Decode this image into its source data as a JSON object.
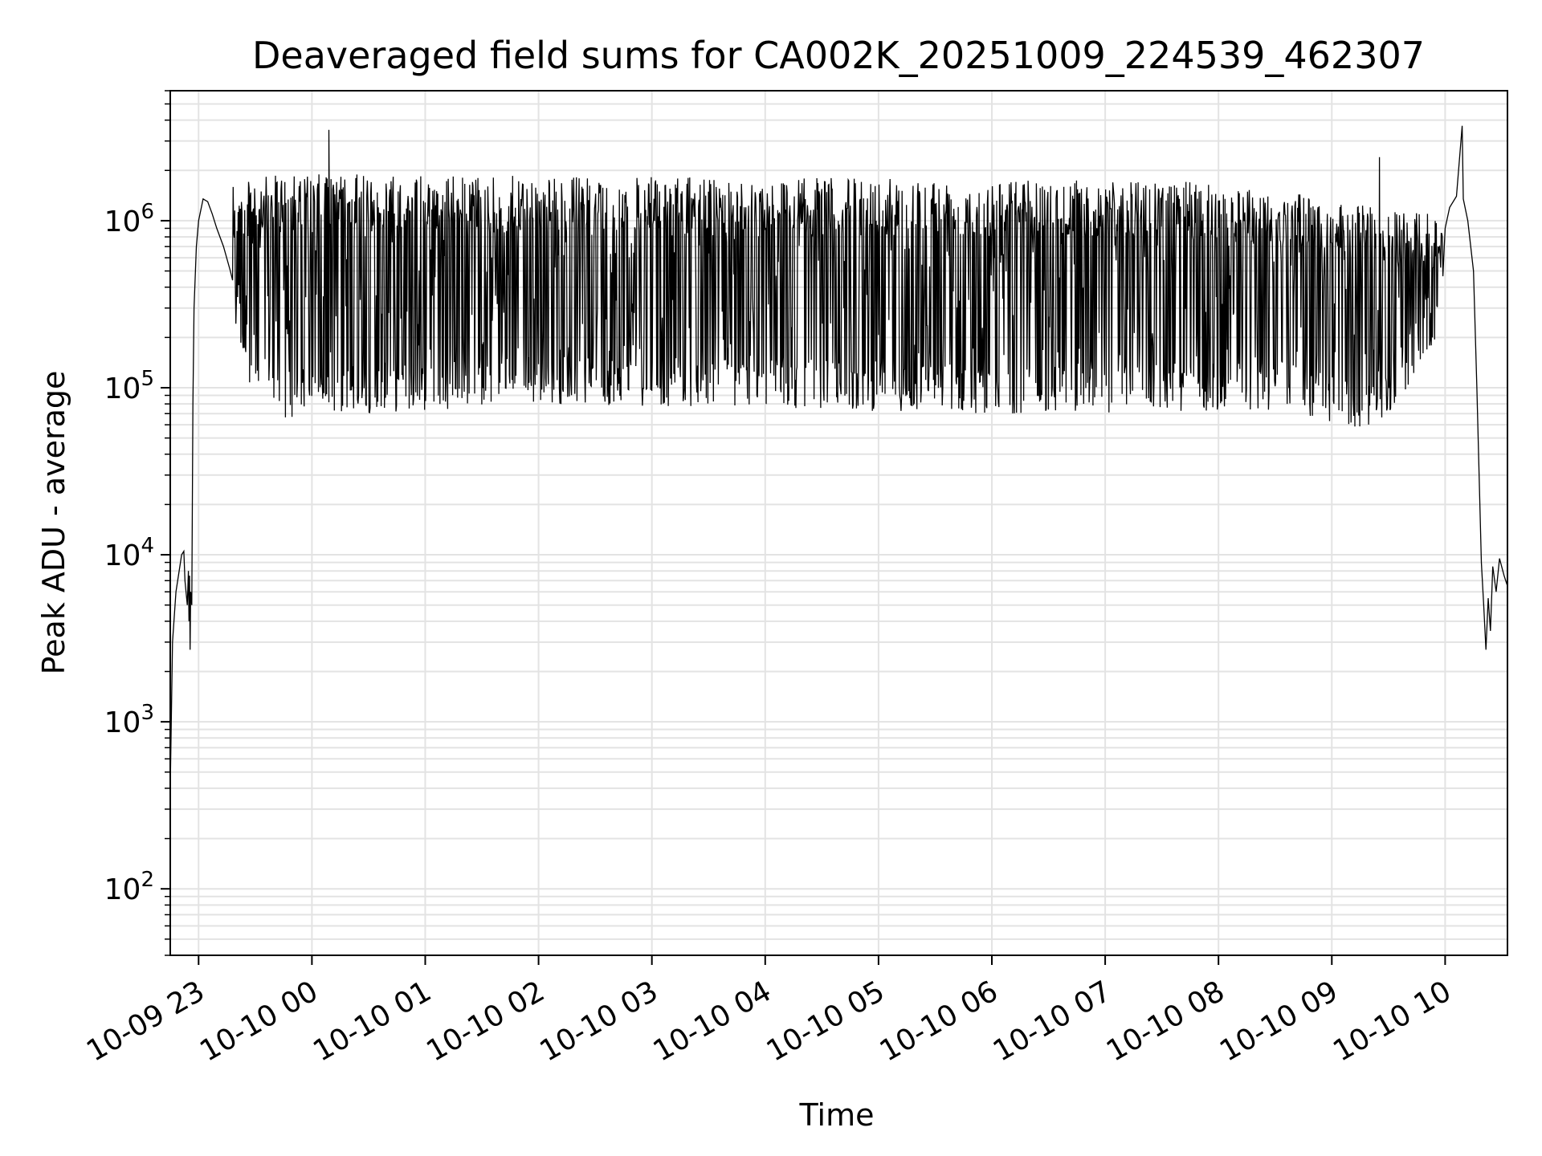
{
  "chart_data": {
    "type": "line",
    "title": "Deaveraged field sums for CA002K_20251009_224539_462307",
    "xlabel": "Time",
    "ylabel": "Peak ADU - average",
    "yscale": "log",
    "ylim": [
      40,
      6000000
    ],
    "xlim_hours": [
      -0.25,
      11.55
    ],
    "x_time_origin": "10-09 23",
    "grid": true,
    "x_ticks": [
      {
        "hour": 0,
        "label": "10-09 23"
      },
      {
        "hour": 1,
        "label": "10-10 00"
      },
      {
        "hour": 2,
        "label": "10-10 01"
      },
      {
        "hour": 3,
        "label": "10-10 02"
      },
      {
        "hour": 4,
        "label": "10-10 03"
      },
      {
        "hour": 5,
        "label": "10-10 04"
      },
      {
        "hour": 6,
        "label": "10-10 05"
      },
      {
        "hour": 7,
        "label": "10-10 06"
      },
      {
        "hour": 8,
        "label": "10-10 07"
      },
      {
        "hour": 9,
        "label": "10-10 08"
      },
      {
        "hour": 10,
        "label": "10-10 09"
      },
      {
        "hour": 11,
        "label": "10-10 10"
      }
    ],
    "y_ticks": [
      {
        "value": 100,
        "base": "10",
        "exp": "2"
      },
      {
        "value": 1000,
        "base": "10",
        "exp": "3"
      },
      {
        "value": 10000,
        "base": "10",
        "exp": "4"
      },
      {
        "value": 100000,
        "base": "10",
        "exp": "5"
      },
      {
        "value": 1000000,
        "base": "10",
        "exp": "6"
      }
    ],
    "series": [
      {
        "name": "peak_adu_minus_average",
        "color": "#000000",
        "envelope": [
          {
            "hour": 0.3,
            "low": 250000,
            "high": 1600000
          },
          {
            "hour": 0.5,
            "low": 80000,
            "high": 1800000
          },
          {
            "hour": 0.75,
            "low": 65000,
            "high": 1900000
          },
          {
            "hour": 1.5,
            "low": 70000,
            "high": 1900000
          },
          {
            "hour": 3.0,
            "low": 80000,
            "high": 1850000
          },
          {
            "hour": 5.0,
            "low": 75000,
            "high": 1800000
          },
          {
            "hour": 7.0,
            "low": 70000,
            "high": 1800000
          },
          {
            "hour": 9.0,
            "low": 70000,
            "high": 1700000
          },
          {
            "hour": 9.6,
            "low": 75000,
            "high": 1500000
          },
          {
            "hour": 10.0,
            "low": 60000,
            "high": 1300000
          },
          {
            "hour": 10.4,
            "low": 55000,
            "high": 1200000
          },
          {
            "hour": 10.85,
            "low": 150000,
            "high": 1100000
          },
          {
            "hour": 10.98,
            "low": 250000,
            "high": 1000000
          }
        ],
        "head": [
          {
            "hour": -0.25,
            "value": 400
          },
          {
            "hour": -0.23,
            "value": 3000
          },
          {
            "hour": -0.2,
            "value": 6000
          },
          {
            "hour": -0.16,
            "value": 9000
          },
          {
            "hour": -0.15,
            "value": 10000
          },
          {
            "hour": -0.13,
            "value": 10500
          },
          {
            "hour": -0.12,
            "value": 7000
          },
          {
            "hour": -0.1,
            "value": 5000
          },
          {
            "hour": -0.09,
            "value": 8000
          },
          {
            "hour": -0.085,
            "value": 4000
          },
          {
            "hour": -0.08,
            "value": 7500
          },
          {
            "hour": -0.075,
            "value": 2700
          },
          {
            "hour": -0.07,
            "value": 6000
          },
          {
            "hour": -0.06,
            "value": 5000
          },
          {
            "hour": -0.05,
            "value": 80000
          },
          {
            "hour": -0.04,
            "value": 300000
          },
          {
            "hour": -0.02,
            "value": 700000
          },
          {
            "hour": 0.0,
            "value": 1000000
          },
          {
            "hour": 0.04,
            "value": 1350000
          },
          {
            "hour": 0.08,
            "value": 1300000
          },
          {
            "hour": 0.12,
            "value": 1100000
          },
          {
            "hour": 0.16,
            "value": 900000
          },
          {
            "hour": 0.22,
            "value": 700000
          },
          {
            "hour": 0.28,
            "value": 500000
          }
        ],
        "tail": [
          {
            "hour": 11.0,
            "value": 900000
          },
          {
            "hour": 11.04,
            "value": 1200000
          },
          {
            "hour": 11.1,
            "value": 1400000
          },
          {
            "hour": 11.16,
            "value": 1350000
          },
          {
            "hour": 11.2,
            "value": 1000000
          },
          {
            "hour": 11.25,
            "value": 500000
          },
          {
            "hour": 11.28,
            "value": 100000
          },
          {
            "hour": 11.3,
            "value": 30000
          },
          {
            "hour": 11.32,
            "value": 9000
          },
          {
            "hour": 11.34,
            "value": 5000
          },
          {
            "hour": 11.36,
            "value": 2700
          },
          {
            "hour": 11.38,
            "value": 5500
          },
          {
            "hour": 11.4,
            "value": 3500
          },
          {
            "hour": 11.42,
            "value": 8500
          },
          {
            "hour": 11.45,
            "value": 6000
          },
          {
            "hour": 11.48,
            "value": 9500
          },
          {
            "hour": 11.52,
            "value": 7500
          },
          {
            "hour": 11.55,
            "value": 6500
          }
        ],
        "spikes": [
          {
            "hour": 1.15,
            "value": 3500000
          },
          {
            "hour": 10.42,
            "value": 2400000
          },
          {
            "hour": 11.15,
            "value": 3700000
          }
        ]
      }
    ]
  }
}
